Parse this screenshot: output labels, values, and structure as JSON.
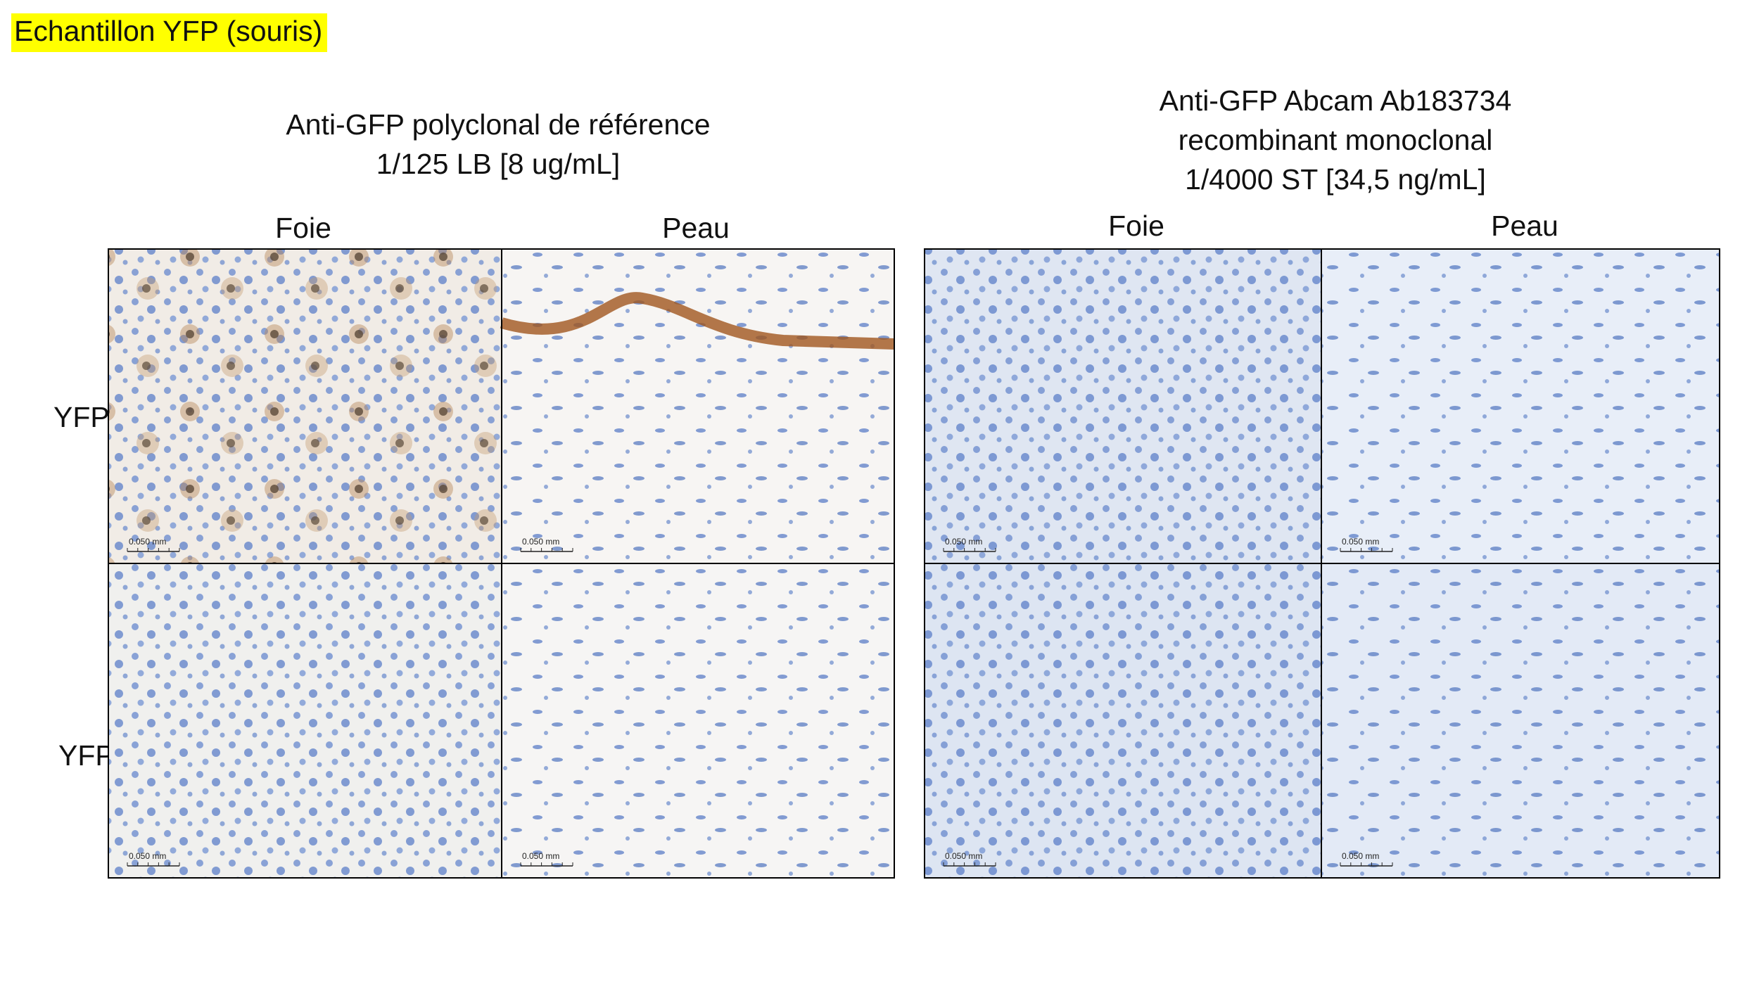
{
  "header": {
    "title": "Echantillon YFP (souris)"
  },
  "rows": [
    "YFP+",
    "YFP-"
  ],
  "panels": [
    {
      "title_lines": [
        "Anti-GFP polyclonal de référence",
        "1/125 LB [8 ug/mL]"
      ],
      "columns": [
        "Foie",
        "Peau"
      ],
      "images": [
        [
          "0.050 mm",
          "0.050 mm"
        ],
        [
          "0.050 mm",
          "0.050 mm"
        ]
      ]
    },
    {
      "title_lines": [
        "Anti-GFP Abcam Ab183734",
        "recombinant monoclonal",
        "1/4000 ST [34,5 ng/mL]"
      ],
      "columns": [
        "Foie",
        "Peau"
      ],
      "images": [
        [
          "0.050 mm",
          "0.050 mm"
        ],
        [
          "0.050 mm",
          "0.050 mm"
        ]
      ]
    }
  ]
}
